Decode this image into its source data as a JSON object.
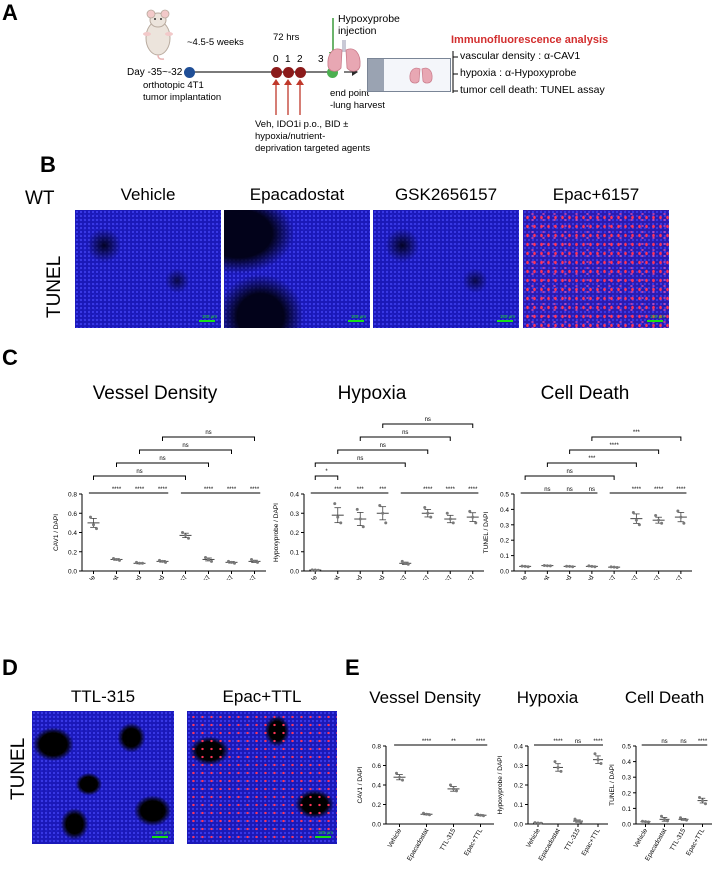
{
  "panels": {
    "a": "A",
    "b": "B",
    "c": "C",
    "d": "D",
    "e": "E"
  },
  "panelA": {
    "day_label": "Day -35~-32",
    "duration": "~4.5-5 weeks",
    "hrs": "72 hrs",
    "hypoxyprobe_line1": "Hypoxyprobe",
    "hypoxyprobe_line2": "injection",
    "days": [
      "0",
      "1",
      "2",
      "3"
    ],
    "implant_line1": "orthotopic 4T1",
    "implant_line2": "tumor implantation",
    "endpoint_line1": "end point",
    "endpoint_line2": "-lung harvest",
    "treat_line1": "Veh, IDO1i p.o., BID ±",
    "treat_line2": "hypoxia/nutrient-",
    "treat_line3": "deprivation targeted agents",
    "if_title": "Immunofluorescence analysis",
    "if_items": [
      "vascular density : α-CAV1",
      "hypoxia : α-Hypoxyprobe",
      "tumor cell death:  TUNEL assay"
    ],
    "colors": {
      "timeline": "#2a2a2a",
      "day_dot": "#8b1a1a",
      "start_dot": "#1f4e96",
      "green_dot": "#4caf50",
      "red_arrow": "#c0392b",
      "green_arrow": "#3a9a3a",
      "title_red": "#d32f2f"
    }
  },
  "panelB": {
    "row_label": "WT",
    "stain": "TUNEL",
    "columns": [
      "Vehicle",
      "Epacadostat",
      "GSK2656157",
      "Epac+6157"
    ],
    "scale": "100 μm"
  },
  "panelD": {
    "stain": "TUNEL",
    "columns": [
      "TTL-315",
      "Epac+TTL"
    ],
    "scale": "100 μm"
  },
  "chart_data": [
    {
      "id": "c1",
      "type": "scatter",
      "title": "Vessel Density",
      "ylabel": "CAV1 / DAPI",
      "xgroup": "WT",
      "ylim": [
        0,
        0.8
      ],
      "yticks": [
        "0.0",
        "0.2",
        "0.4",
        "0.6",
        "0.8"
      ],
      "categories": [
        "Vehicle",
        "Epacadostat",
        "Navoximod",
        "Indoximod",
        "GSK2656157",
        "Epac+6157",
        "Navox+6157",
        "Indox+6157"
      ],
      "means": [
        0.5,
        0.12,
        0.08,
        0.1,
        0.37,
        0.12,
        0.09,
        0.1
      ],
      "points": [
        [
          0.56,
          0.48,
          0.44
        ],
        [
          0.13,
          0.12,
          0.11
        ],
        [
          0.09,
          0.08,
          0.08
        ],
        [
          0.11,
          0.1,
          0.09
        ],
        [
          0.4,
          0.37,
          0.34
        ],
        [
          0.14,
          0.12,
          0.1
        ],
        [
          0.1,
          0.09,
          0.08
        ],
        [
          0.12,
          0.1,
          0.09
        ]
      ],
      "star_top": [
        "",
        "****",
        "****",
        "****",
        "",
        "****",
        "****",
        "****"
      ],
      "brackets": [
        {
          "a": 0,
          "b": 4,
          "label": "ns"
        },
        {
          "a": 1,
          "b": 5,
          "label": "ns"
        },
        {
          "a": 2,
          "b": 6,
          "label": "ns"
        },
        {
          "a": 3,
          "b": 7,
          "label": "ns"
        }
      ]
    },
    {
      "id": "c2",
      "type": "scatter",
      "title": "Hypoxia",
      "ylabel": "Hypoxyprobe / DAPI",
      "xgroup": "WT",
      "ylim": [
        0,
        0.4
      ],
      "yticks": [
        "0.0",
        "0.1",
        "0.2",
        "0.3",
        "0.4"
      ],
      "categories": [
        "Vehicle",
        "Epacadostat",
        "Navoximod",
        "Indoximod",
        "GSK2656157",
        "Epac+6157",
        "Navox+6157",
        "Indox+6157"
      ],
      "means": [
        0.005,
        0.29,
        0.27,
        0.3,
        0.04,
        0.3,
        0.27,
        0.28
      ],
      "points": [
        [
          0.006,
          0.005,
          0.004
        ],
        [
          0.35,
          0.28,
          0.25
        ],
        [
          0.32,
          0.27,
          0.23
        ],
        [
          0.34,
          0.3,
          0.25
        ],
        [
          0.05,
          0.04,
          0.035
        ],
        [
          0.33,
          0.3,
          0.28
        ],
        [
          0.3,
          0.27,
          0.25
        ],
        [
          0.31,
          0.28,
          0.25
        ]
      ],
      "star_top": [
        "",
        "***",
        "***",
        "***",
        "",
        "****",
        "****",
        "****"
      ],
      "brackets": [
        {
          "a": 0,
          "b": 1,
          "label": "*"
        },
        {
          "a": 0,
          "b": 4,
          "label": "ns"
        },
        {
          "a": 1,
          "b": 5,
          "label": "ns"
        },
        {
          "a": 2,
          "b": 6,
          "label": "ns"
        },
        {
          "a": 3,
          "b": 7,
          "label": "ns"
        }
      ]
    },
    {
      "id": "c3",
      "type": "scatter",
      "title": "Cell Death",
      "ylabel": "TUNEL / DAPI",
      "xgroup": "WT",
      "ylim": [
        0,
        0.5
      ],
      "yticks": [
        "0.0",
        "0.1",
        "0.2",
        "0.3",
        "0.4",
        "0.5"
      ],
      "categories": [
        "Vehicle",
        "Epacadostat",
        "Navoximod",
        "Indoximod",
        "GSK2656157",
        "Epac+6157",
        "Navox+6157",
        "Indox+6157"
      ],
      "means": [
        0.03,
        0.035,
        0.03,
        0.03,
        0.025,
        0.34,
        0.33,
        0.35
      ],
      "points": [
        [
          0.032,
          0.03,
          0.028
        ],
        [
          0.036,
          0.034,
          0.033
        ],
        [
          0.031,
          0.03,
          0.028
        ],
        [
          0.033,
          0.03,
          0.028
        ],
        [
          0.027,
          0.025,
          0.023
        ],
        [
          0.38,
          0.33,
          0.3
        ],
        [
          0.36,
          0.33,
          0.31
        ],
        [
          0.39,
          0.35,
          0.31
        ]
      ],
      "star_top": [
        "",
        "ns",
        "ns",
        "ns",
        "",
        "****",
        "****",
        "****"
      ],
      "brackets": [
        {
          "a": 0,
          "b": 4,
          "label": "ns"
        },
        {
          "a": 1,
          "b": 5,
          "label": "***"
        },
        {
          "a": 2,
          "b": 6,
          "label": "****"
        },
        {
          "a": 3,
          "b": 7,
          "label": "***"
        }
      ]
    },
    {
      "id": "e1",
      "type": "scatter",
      "title": "Vessel Density",
      "ylabel": "CAV1 / DAPI",
      "ylim": [
        0,
        0.8
      ],
      "yticks": [
        "0.0",
        "0.2",
        "0.4",
        "0.6",
        "0.8"
      ],
      "categories": [
        "Vehicle",
        "Epacadostat",
        "TTL-315",
        "Epac+TTL"
      ],
      "means": [
        0.48,
        0.1,
        0.36,
        0.09
      ],
      "points": [
        [
          0.52,
          0.48,
          0.45
        ],
        [
          0.11,
          0.1,
          0.095
        ],
        [
          0.4,
          0.36,
          0.34
        ],
        [
          0.1,
          0.09,
          0.085
        ]
      ],
      "star_top": [
        "",
        "****",
        "**",
        "****"
      ]
    },
    {
      "id": "e2",
      "type": "scatter",
      "title": "Hypoxia",
      "ylabel": "Hypoxyprobe / DAPI",
      "ylim": [
        0,
        0.4
      ],
      "yticks": [
        "0.0",
        "0.1",
        "0.2",
        "0.3",
        "0.4"
      ],
      "categories": [
        "Vehicle",
        "Epacadostat",
        "TTL-315",
        "Epac+TTL"
      ],
      "means": [
        0.005,
        0.29,
        0.015,
        0.33
      ],
      "points": [
        [
          0.007,
          0.005,
          0.004
        ],
        [
          0.32,
          0.29,
          0.27
        ],
        [
          0.025,
          0.015,
          0.01
        ],
        [
          0.36,
          0.33,
          0.31
        ]
      ],
      "star_top": [
        "",
        "****",
        "ns",
        "****"
      ]
    },
    {
      "id": "e3",
      "type": "scatter",
      "title": "Cell Death",
      "ylabel": "TUNEL / DAPI",
      "ylim": [
        0,
        0.5
      ],
      "yticks": [
        "0.0",
        "0.1",
        "0.2",
        "0.3",
        "0.4",
        "0.5"
      ],
      "categories": [
        "Vehicle",
        "Epacadostat",
        "TTL-315",
        "Epac+TTL"
      ],
      "means": [
        0.015,
        0.03,
        0.03,
        0.15
      ],
      "points": [
        [
          0.018,
          0.015,
          0.013
        ],
        [
          0.05,
          0.03,
          0.02
        ],
        [
          0.04,
          0.03,
          0.025
        ],
        [
          0.17,
          0.15,
          0.13
        ]
      ],
      "star_top": [
        "",
        "ns",
        "ns",
        "****"
      ]
    }
  ]
}
